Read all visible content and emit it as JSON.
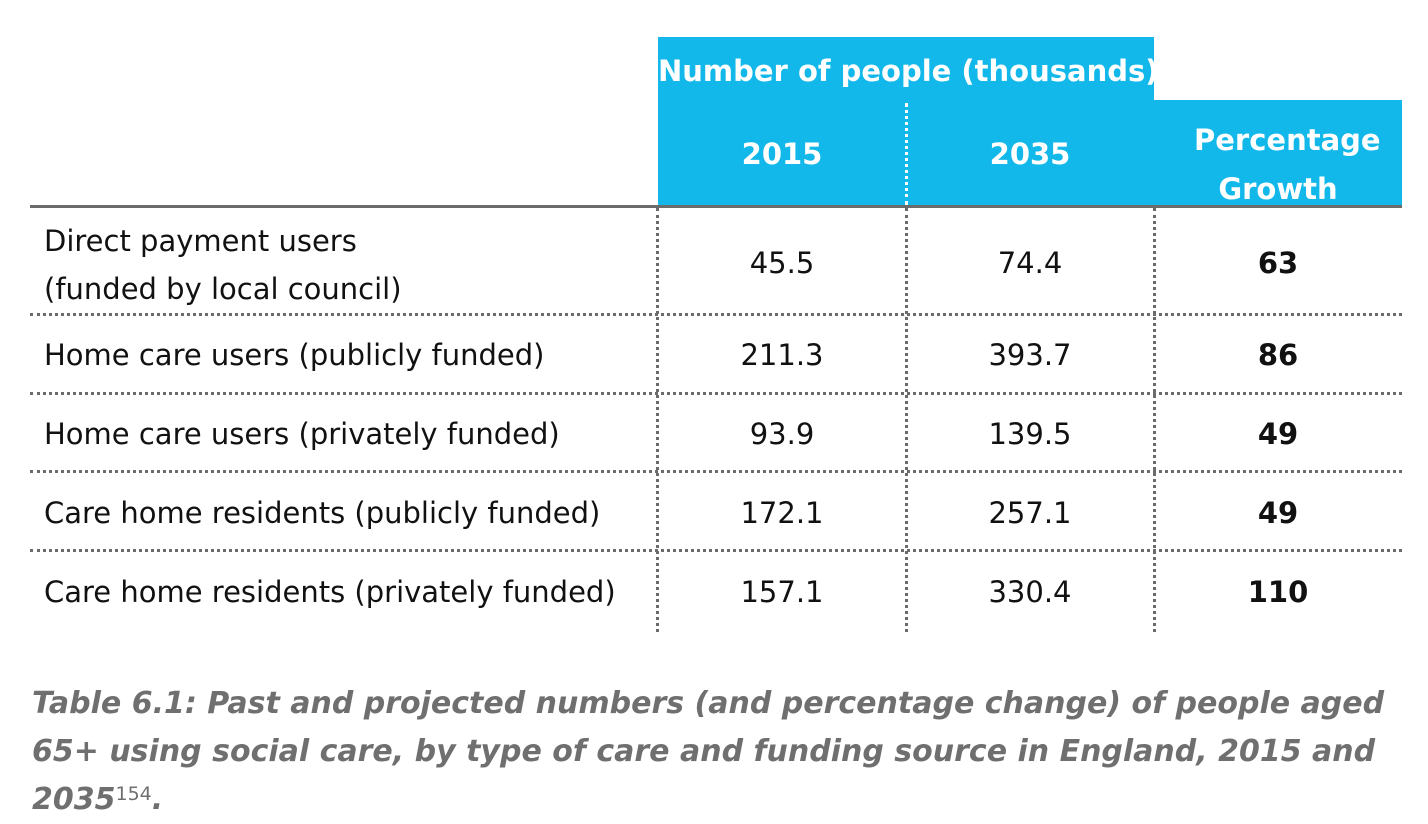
{
  "table": {
    "group_header": "Number of people (thousands)",
    "columns": {
      "year1": "2015",
      "year2": "2035",
      "growth": "Percentage Growth (%)"
    },
    "rows": [
      {
        "label_line1": "Direct payment users",
        "label_line2": "(funded by local council)",
        "v2015": "45.5",
        "v2035": "74.4",
        "growth": "63"
      },
      {
        "label_line1": "Home care users (publicly funded)",
        "v2015": "211.3",
        "v2035": "393.7",
        "growth": "86"
      },
      {
        "label_line1": "Home care users (privately funded)",
        "v2015": "93.9",
        "v2035": "139.5",
        "growth": "49"
      },
      {
        "label_line1": "Care home residents (publicly funded)",
        "v2015": "172.1",
        "v2035": "257.1",
        "growth": "49"
      },
      {
        "label_line1": "Care home residents (privately funded)",
        "v2015": "157.1",
        "v2035": "330.4",
        "growth": "110"
      }
    ]
  },
  "caption": {
    "text": "Table 6.1: Past and projected numbers (and percentage change) of people aged 65+ using social care, by type of care and funding source in England, 2015 and 2035",
    "footnote": "154",
    "end": "."
  },
  "colors": {
    "header_bg": "#13b8ea",
    "header_text": "#ffffff",
    "rule": "#6b6b6b",
    "caption": "#6f6f6f"
  }
}
